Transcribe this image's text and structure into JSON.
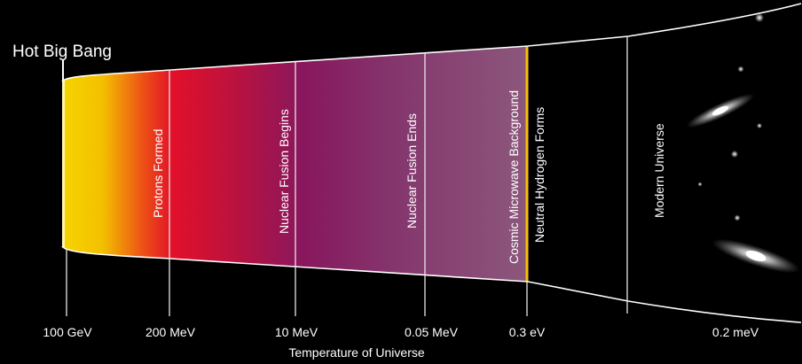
{
  "hot_big_bang": "Hot Big Bang",
  "epochs": [
    {
      "label": "Protons Formed"
    },
    {
      "label": "Nuclear Fusion Begins"
    },
    {
      "label": "Nuclear Fusion Ends"
    },
    {
      "label": "Cosmic Microwave Background"
    },
    {
      "label": "Neutral Hydrogen Forms"
    },
    {
      "label": "Modern Universe"
    }
  ],
  "ticks": [
    "100 GeV",
    "200 MeV",
    "10 MeV",
    "0.05 MeV",
    "0.3 eV",
    "0.2 meV"
  ],
  "axis_title": "Temperature of Universe",
  "colors": {
    "background": "#000000",
    "yellow": "#f6d300",
    "red": "#e2102a",
    "purple": "#88175e",
    "mauve": "#8c587c"
  }
}
